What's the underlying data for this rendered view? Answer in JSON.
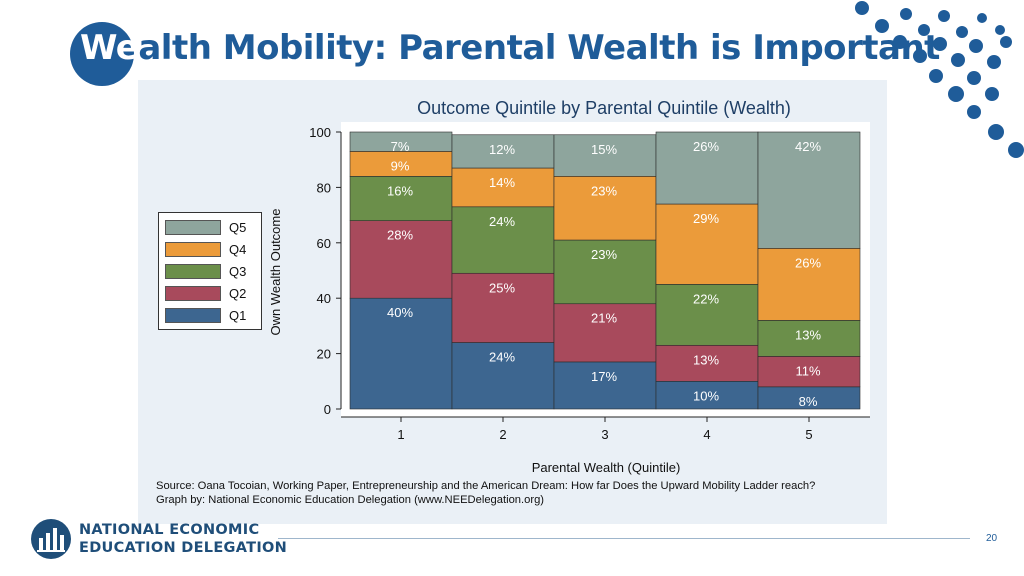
{
  "slide": {
    "title_first": "We",
    "title_rest": "alth Mobility: Parental Wealth is Important",
    "page_number": "20"
  },
  "footer": {
    "org_line1": "NATIONAL ECONOMIC",
    "org_line2": "EDUCATION DELEGATION"
  },
  "source": {
    "line1": "Source: Oana Tocoian, Working Paper, Entrepreneurship and the American Dream: How far Does the Upward Mobility Ladder reach?",
    "line2": "Graph by: National Economic Education Delegation (www.NEEDelegation.org)"
  },
  "colors": {
    "brand": "#1f5c99",
    "Q1": "#3d6690",
    "Q2": "#a84a5c",
    "Q3": "#6b8f4a",
    "Q4": "#eb9b3a",
    "Q5": "#8ea59d"
  },
  "legend": [
    {
      "label": "Q5"
    },
    {
      "label": "Q4"
    },
    {
      "label": "Q3"
    },
    {
      "label": "Q2"
    },
    {
      "label": "Q1"
    }
  ],
  "chart_data": {
    "type": "bar",
    "stacked": true,
    "title": "Outcome Quintile by Parental Quintile (Wealth)",
    "xlabel": "Parental Wealth (Quintile)",
    "ylabel": "Own Wealth Outcome",
    "ylim": [
      0,
      100
    ],
    "yticks": [
      "0",
      "20",
      "40",
      "60",
      "80",
      "100"
    ],
    "categories": [
      "1",
      "2",
      "3",
      "4",
      "5"
    ],
    "series": [
      {
        "name": "Q1",
        "values": [
          40,
          24,
          17,
          10,
          8
        ],
        "labels": [
          "40%",
          "24%",
          "17%",
          "10%",
          "8%"
        ]
      },
      {
        "name": "Q2",
        "values": [
          28,
          25,
          21,
          13,
          11
        ],
        "labels": [
          "28%",
          "25%",
          "21%",
          "13%",
          "11%"
        ]
      },
      {
        "name": "Q3",
        "values": [
          16,
          24,
          23,
          22,
          13
        ],
        "labels": [
          "16%",
          "24%",
          "23%",
          "22%",
          "13%"
        ]
      },
      {
        "name": "Q4",
        "values": [
          9,
          14,
          23,
          29,
          26
        ],
        "labels": [
          "9%",
          "14%",
          "23%",
          "29%",
          "26%"
        ]
      },
      {
        "name": "Q5",
        "values": [
          7,
          12,
          15,
          26,
          42
        ],
        "labels": [
          "7%",
          "12%",
          "15%",
          "26%",
          "42%"
        ]
      }
    ]
  }
}
